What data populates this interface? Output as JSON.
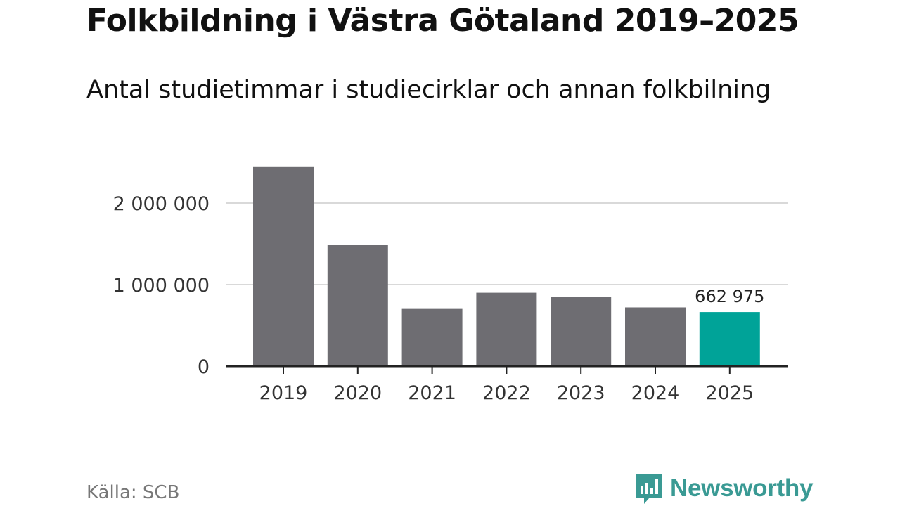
{
  "title": "Folkbildning i Västra Götaland 2019–2025",
  "subtitle": "Antal studietimmar i studiecirklar och annan folkbilning",
  "source": "Källa: SCB",
  "brand": {
    "name": "Newsworthy",
    "icon": "newsworthy-logo-icon"
  },
  "colors": {
    "bar": "#6e6d72",
    "highlight": "#00a398",
    "grid": "#d9d9d9",
    "axis": "#222222",
    "text": "#333333"
  },
  "chart_data": {
    "type": "bar",
    "title": "Folkbildning i Västra Götaland 2019–2025",
    "subtitle": "Antal studietimmar i studiecirklar och annan folkbilning",
    "categories": [
      "2019",
      "2020",
      "2021",
      "2022",
      "2023",
      "2024",
      "2025"
    ],
    "values": [
      2450000,
      1490000,
      710000,
      900000,
      850000,
      720000,
      662975
    ],
    "highlight_index": 6,
    "data_labels": [
      {
        "index": 6,
        "text": "662 975"
      }
    ],
    "yticks": [
      {
        "value": 0,
        "label": "0"
      },
      {
        "value": 1000000,
        "label": "1 000 000"
      },
      {
        "value": 2000000,
        "label": "2 000 000"
      }
    ],
    "ylim": [
      0,
      2450000
    ],
    "xlabel": "",
    "ylabel": "",
    "grid": true
  }
}
